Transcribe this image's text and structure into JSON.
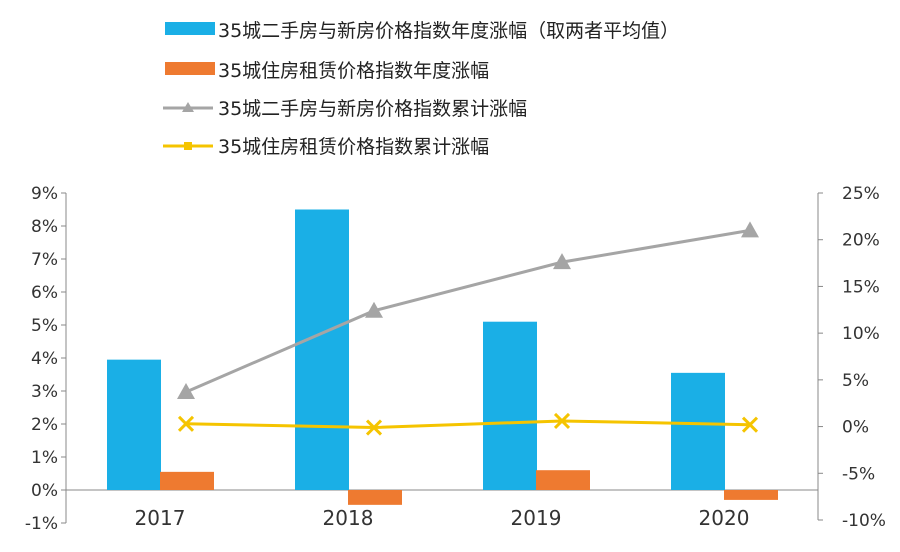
{
  "chart_data": {
    "type": "bar",
    "categories": [
      "2017",
      "2018",
      "2019",
      "2020"
    ],
    "series": [
      {
        "name": "35城二手房与新房价格指数年度涨幅（取两者平均值）",
        "kind": "bar",
        "axis": "left",
        "color": "#1aafe6",
        "values": [
          3.95,
          8.5,
          5.1,
          3.55
        ]
      },
      {
        "name": "35城住房租赁价格指数年度涨幅",
        "kind": "bar",
        "axis": "left",
        "color": "#ee7a30",
        "values": [
          0.55,
          -0.45,
          0.6,
          -0.3
        ]
      },
      {
        "name": "35城二手房与新房价格指数累计涨幅",
        "kind": "line",
        "axis": "right",
        "color": "#a5a5a5",
        "marker": "triangle",
        "values": [
          3.7,
          12.4,
          17.6,
          21.0
        ]
      },
      {
        "name": "35城住房租赁价格指数累计涨幅",
        "kind": "line",
        "axis": "right",
        "color": "#f5c400",
        "marker": "x",
        "values": [
          0.3,
          -0.1,
          0.6,
          0.2
        ]
      }
    ],
    "left_axis": {
      "ylim": [
        -1,
        9
      ],
      "ticks": [
        -1,
        0,
        1,
        2,
        3,
        4,
        5,
        6,
        7,
        8,
        9
      ],
      "tick_labels": [
        "-1%",
        "0%",
        "1%",
        "2%",
        "3%",
        "4%",
        "5%",
        "6%",
        "7%",
        "8%",
        "9%"
      ]
    },
    "right_axis": {
      "ylim": [
        -10,
        25
      ],
      "ticks": [
        -10,
        -5,
        0,
        5,
        10,
        15,
        20,
        25
      ],
      "tick_labels": [
        "-10%",
        "-5%",
        "0%",
        "5%",
        "10%",
        "15%",
        "20%",
        "25%"
      ]
    },
    "legend_position": "top-center",
    "grid": false,
    "title": "",
    "xlabel": "",
    "ylabel": ""
  }
}
